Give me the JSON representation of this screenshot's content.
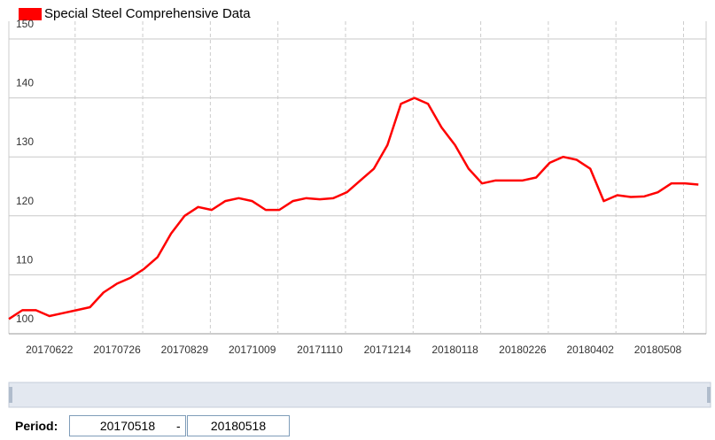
{
  "chart_data": {
    "type": "line",
    "title": "Special Steel Comprehensive Data",
    "categories": [
      null,
      null,
      null,
      "20170622",
      null,
      null,
      null,
      null,
      "20170726",
      null,
      null,
      null,
      null,
      "20170829",
      null,
      null,
      null,
      null,
      "20171009",
      null,
      null,
      null,
      null,
      "20171110",
      null,
      null,
      null,
      null,
      "20171214",
      null,
      null,
      null,
      null,
      "20180118",
      null,
      null,
      null,
      null,
      "20180226",
      null,
      null,
      null,
      null,
      "20180402",
      null,
      null,
      null,
      null,
      "20180508",
      null,
      null,
      null
    ],
    "series": [
      {
        "name": "Special Steel Comprehensive Data",
        "color": "#ff0000",
        "values": [
          102.5,
          104,
          104,
          103,
          103.5,
          104,
          104.5,
          107,
          108.5,
          109.5,
          111,
          113,
          117,
          120,
          121.5,
          121,
          122.5,
          123,
          122.5,
          121,
          121,
          122.5,
          123,
          122.8,
          123,
          124,
          126,
          128,
          132,
          139,
          140,
          139,
          135,
          132,
          128,
          125.5,
          126,
          126,
          126,
          126.5,
          129,
          130,
          129.5,
          128,
          122.5,
          123.5,
          123.2,
          123.3,
          124,
          125.5,
          125.5,
          125.3
        ]
      }
    ],
    "ylim": [
      100,
      150
    ],
    "yticks": [
      100,
      110,
      120,
      130,
      140,
      150
    ],
    "grid": true
  },
  "controls": {
    "period_label": "Period:",
    "start": "20170518",
    "separator": "-",
    "end": "20180518"
  }
}
